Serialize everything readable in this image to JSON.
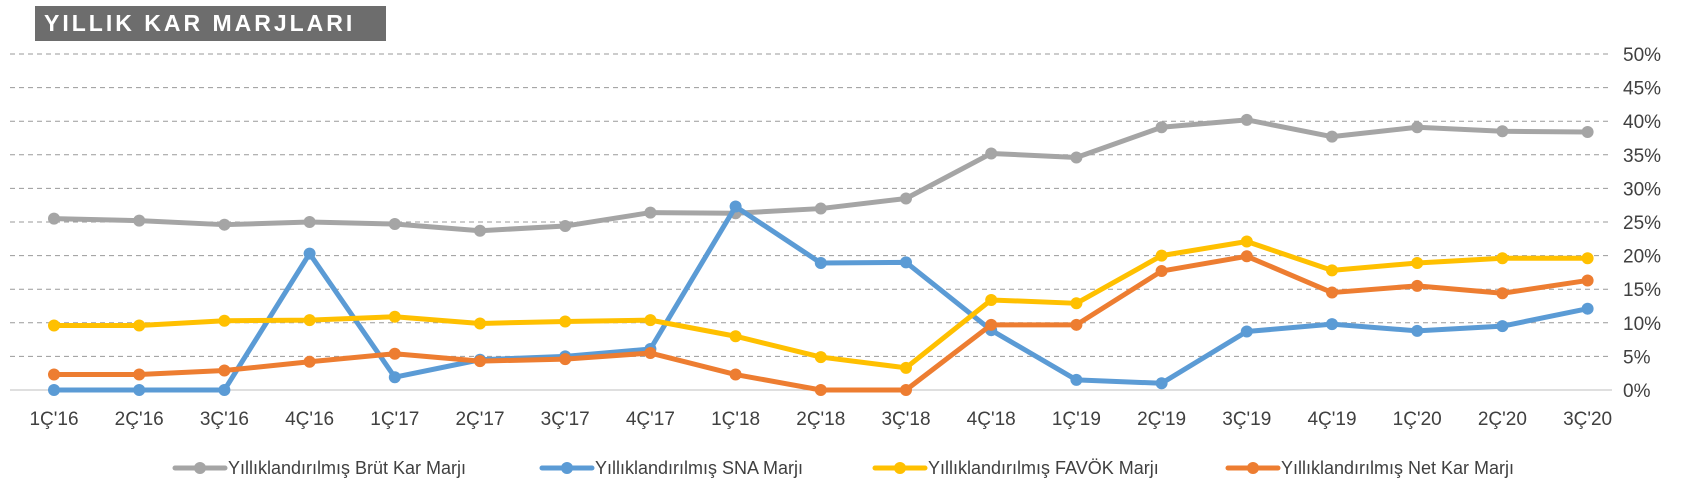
{
  "chart_data": {
    "type": "line",
    "title": "YILLIK KAR MARJLARI",
    "categories": [
      "1Ç'16",
      "2Ç'16",
      "3Ç'16",
      "4Ç'16",
      "1Ç'17",
      "2Ç'17",
      "3Ç'17",
      "4Ç'17",
      "1Ç'18",
      "2Ç'18",
      "3Ç'18",
      "4Ç'18",
      "1Ç'19",
      "2Ç'19",
      "3Ç'19",
      "4Ç'19",
      "1Ç'20",
      "2Ç'20",
      "3Ç'20"
    ],
    "ylim": [
      0,
      50
    ],
    "yticks": [
      "0%",
      "5%",
      "10%",
      "15%",
      "20%",
      "25%",
      "30%",
      "35%",
      "40%",
      "45%",
      "50%"
    ],
    "ytick_values": [
      0,
      5,
      10,
      15,
      20,
      25,
      30,
      35,
      40,
      45,
      50
    ],
    "grid": true,
    "legend_position": "bottom",
    "series": [
      {
        "name": "Yıllıklandırılmış Brüt Kar Marjı",
        "color": "#a5a5a5",
        "values": [
          25.5,
          25.2,
          24.6,
          25.0,
          24.7,
          23.7,
          24.4,
          26.4,
          26.3,
          27.0,
          28.5,
          35.2,
          34.6,
          39.1,
          40.2,
          37.7,
          39.1,
          38.5,
          38.4
        ]
      },
      {
        "name": "Yıllıklandırılmış SNA Marjı",
        "color": "#5b9bd5",
        "values": [
          0.0,
          0.0,
          0.0,
          20.3,
          1.9,
          4.5,
          5.0,
          6.1,
          27.3,
          18.9,
          19.0,
          8.9,
          1.5,
          1.0,
          8.7,
          9.8,
          8.8,
          9.5,
          12.1
        ]
      },
      {
        "name": "Yıllıklandırılmış FAVÖK Marjı",
        "color": "#ffc000",
        "values": [
          9.6,
          9.6,
          10.3,
          10.4,
          10.9,
          9.9,
          10.2,
          10.4,
          8.0,
          4.9,
          3.3,
          13.4,
          12.9,
          20.0,
          22.1,
          17.8,
          18.9,
          19.6,
          19.6
        ]
      },
      {
        "name": "Yıllıklandırılmış Net Kar Marjı",
        "color": "#ed7d31",
        "values": [
          2.3,
          2.3,
          2.9,
          4.2,
          5.4,
          4.3,
          4.6,
          5.5,
          2.3,
          0.0,
          0.0,
          9.7,
          9.7,
          17.7,
          19.9,
          14.5,
          15.5,
          14.4,
          16.3
        ]
      }
    ]
  }
}
